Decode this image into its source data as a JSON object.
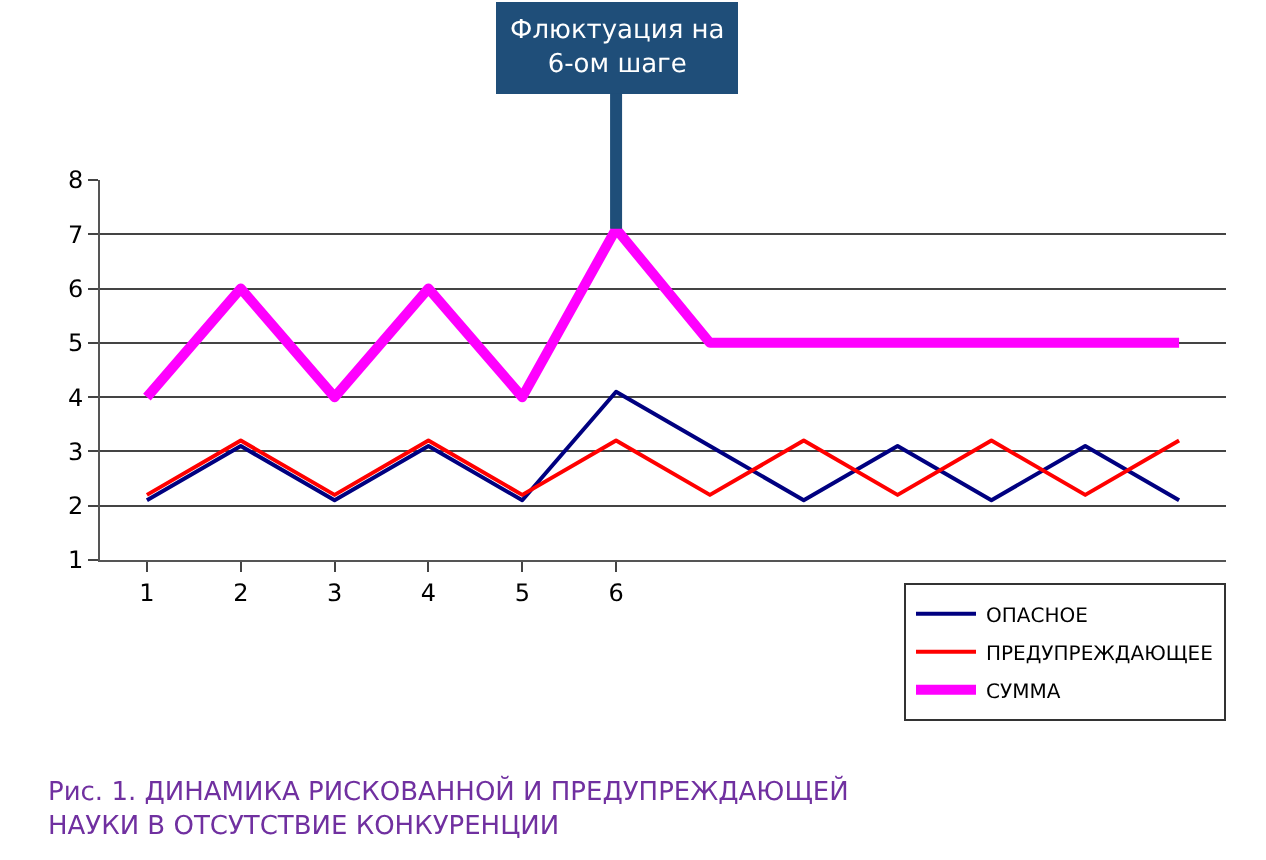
{
  "chart_data": {
    "type": "line",
    "categories": [
      "1",
      "2",
      "3",
      "4",
      "5",
      "6",
      null,
      null,
      null,
      null,
      null,
      null
    ],
    "series": [
      {
        "name": "ОПАСНОЕ",
        "color": "#000080",
        "values": [
          2.1,
          3.1,
          2.1,
          3.1,
          2.1,
          4.1,
          3.1,
          2.1,
          3.1,
          2.1,
          3.1,
          2.1
        ]
      },
      {
        "name": "ПРЕДУПРЕЖДАЮЩЕЕ",
        "color": "#ff0000",
        "values": [
          2.2,
          3.2,
          2.2,
          3.2,
          2.2,
          3.2,
          2.2,
          3.2,
          2.2,
          3.2,
          2.2,
          3.2
        ]
      },
      {
        "name": "СУММА",
        "color": "#ff00ff",
        "values": [
          4,
          6,
          4,
          6,
          4,
          7.1,
          5,
          5,
          5,
          5,
          5,
          5
        ]
      }
    ],
    "ylim": [
      1,
      8
    ],
    "yticks": [
      1,
      2,
      3,
      4,
      5,
      6,
      7,
      8
    ],
    "grid": "y",
    "legend": "bottom right",
    "marker": "none",
    "line_style": "solid",
    "annotations": [
      {
        "text": "Флюктуация на\n6-ом шаге",
        "x": "6",
        "y": 7.1
      },
      "Рис. 1. ДИНАМИКА РИСКОВАННОЙ И ПРЕДУПРЕЖДАЮЩЕЙ\nНАУКИ В ОТСУТСТВИЕ КОНКУРЕНЦИИ"
    ]
  }
}
